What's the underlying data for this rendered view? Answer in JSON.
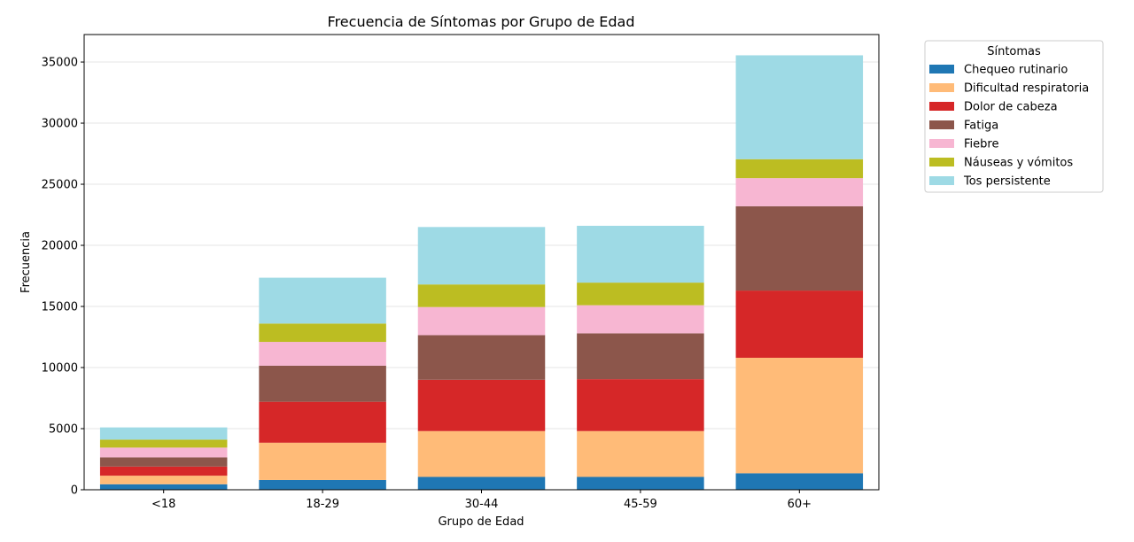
{
  "chart_data": {
    "type": "bar",
    "stacked": true,
    "title": "Frecuencia de Síntomas por Grupo de Edad",
    "xlabel": "Grupo de Edad",
    "ylabel": "Frecuencia",
    "categories": [
      "<18",
      "18-29",
      "30-44",
      "45-59",
      "60+"
    ],
    "ylim": [
      0,
      37250
    ],
    "yticks": [
      0,
      5000,
      10000,
      15000,
      20000,
      25000,
      30000,
      35000
    ],
    "grid": true,
    "legend": {
      "title": "Síntomas",
      "placement": "outside-top-right"
    },
    "series": [
      {
        "name": "Chequeo rutinario",
        "color": "#1f77b4",
        "values": [
          450,
          800,
          1050,
          1050,
          1350
        ]
      },
      {
        "name": "Dificultad respiratoria",
        "color": "#ffbb78",
        "values": [
          700,
          3050,
          3750,
          3750,
          9450
        ]
      },
      {
        "name": "Dolor de cabeza",
        "color": "#d62728",
        "values": [
          750,
          3350,
          4200,
          4250,
          5500
        ]
      },
      {
        "name": "Fatiga",
        "color": "#8c564b",
        "values": [
          750,
          2950,
          3650,
          3750,
          6900
        ]
      },
      {
        "name": "Fiebre",
        "color": "#f7b6d2",
        "values": [
          800,
          1950,
          2300,
          2300,
          2300
        ]
      },
      {
        "name": "Náuseas y vómitos",
        "color": "#bcbd22",
        "values": [
          650,
          1500,
          1850,
          1850,
          1550
        ]
      },
      {
        "name": "Tos persistente",
        "color": "#9edae5",
        "values": [
          1000,
          3750,
          4700,
          4650,
          8500
        ]
      }
    ]
  }
}
